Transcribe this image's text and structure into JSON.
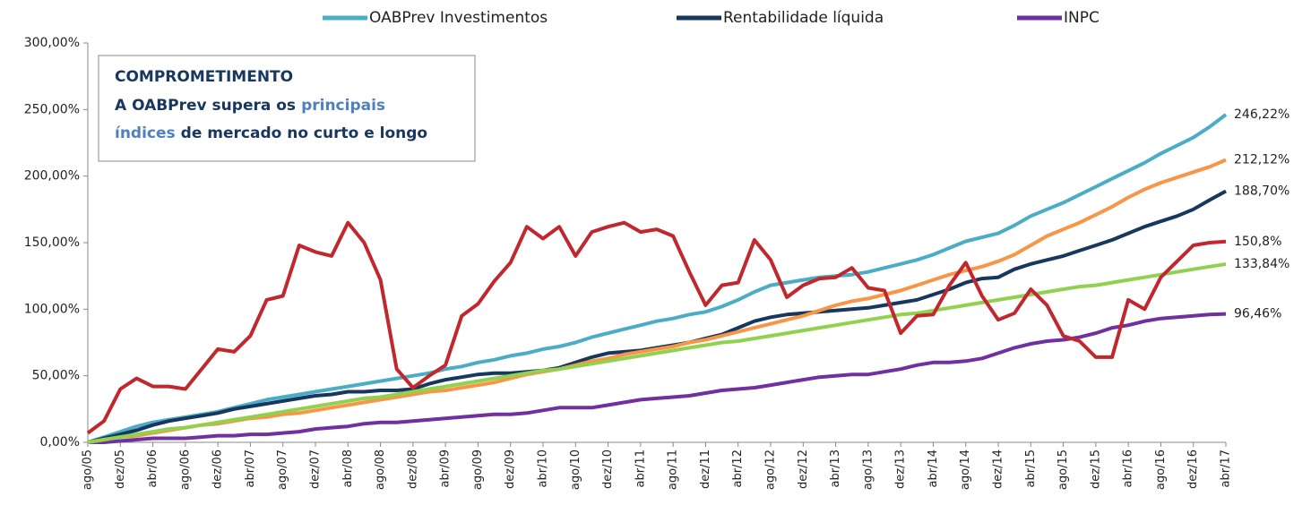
{
  "chart_data": {
    "type": "line",
    "categories": [
      "ago/05",
      null,
      "dez/05",
      null,
      "abr/06",
      null,
      "ago/06",
      null,
      "dez/06",
      null,
      "abr/07",
      null,
      "ago/07",
      null,
      "dez/07",
      null,
      "abr/08",
      null,
      "ago/08",
      null,
      "dez/08",
      null,
      "abr/09",
      null,
      "ago/09",
      null,
      "dez/09",
      null,
      "abr/10",
      null,
      "ago/10",
      null,
      "dez/10",
      null,
      "abr/11",
      null,
      "ago/11",
      null,
      "dez/11",
      null,
      "abr/12",
      null,
      "ago/12",
      null,
      "dez/12",
      null,
      "abr/13",
      null,
      "ago/13",
      null,
      "dez/13",
      null,
      "abr/14",
      null,
      "ago/14",
      null,
      "dez/14",
      null,
      "abr/15",
      null,
      "ago/15",
      null,
      "dez/15",
      null,
      "abr/16",
      null,
      "ago/16",
      null,
      "dez/16",
      null,
      "abr/17"
    ],
    "series": [
      {
        "name": "OABPrev Investimentos",
        "color": "#4bacc6",
        "end_label": "246,22%",
        "values": [
          0,
          4,
          8,
          12,
          15,
          17,
          19,
          21,
          23,
          26,
          29,
          32,
          34,
          36,
          38,
          40,
          42,
          44,
          46,
          48,
          50,
          52,
          55,
          57,
          60,
          62,
          65,
          67,
          70,
          72,
          75,
          79,
          82,
          85,
          88,
          91,
          93,
          96,
          98,
          102,
          107,
          113,
          118,
          120,
          122,
          124,
          125,
          126,
          128,
          131,
          134,
          137,
          141,
          146,
          151,
          154,
          157,
          163,
          170,
          175,
          180,
          186,
          192,
          198,
          204,
          210,
          217,
          223,
          229,
          237,
          246.22
        ]
      },
      {
        "name": "Rentabilidade líquida",
        "color": "#17375e",
        "end_label": "188,70%",
        "values": [
          0,
          3,
          6,
          9,
          13,
          16,
          18,
          20,
          22,
          25,
          27,
          29,
          31,
          33,
          35,
          36,
          38,
          38,
          39,
          39,
          40,
          44,
          47,
          49,
          51,
          52,
          52,
          53,
          54,
          56,
          60,
          64,
          67,
          68,
          69,
          71,
          73,
          75,
          78,
          81,
          86,
          91,
          94,
          96,
          97,
          98,
          99,
          100,
          101,
          103,
          105,
          107,
          111,
          115,
          120,
          123,
          124,
          130,
          134,
          137,
          140,
          144,
          148,
          152,
          157,
          162,
          166,
          170,
          175,
          182,
          188.7
        ]
      },
      {
        "name": "INPC",
        "color": "#7030a0",
        "end_label": "96,46%",
        "values": [
          0,
          0,
          1,
          2,
          3,
          3,
          3,
          4,
          5,
          5,
          6,
          6,
          7,
          8,
          10,
          11,
          12,
          14,
          15,
          15,
          16,
          17,
          18,
          19,
          20,
          21,
          21,
          22,
          24,
          26,
          26,
          26,
          28,
          30,
          32,
          33,
          34,
          35,
          37,
          39,
          40,
          41,
          43,
          45,
          47,
          49,
          50,
          51,
          51,
          53,
          55,
          58,
          60,
          60,
          61,
          63,
          67,
          71,
          74,
          76,
          77,
          79,
          82,
          86,
          88,
          91,
          93,
          94,
          95,
          96,
          96.46
        ]
      },
      {
        "color": "#f79646",
        "end_label": "212,12%",
        "values": [
          0,
          2,
          4,
          5,
          7,
          9,
          11,
          13,
          14,
          16,
          18,
          19,
          21,
          22,
          24,
          26,
          28,
          30,
          32,
          34,
          36,
          38,
          39,
          41,
          43,
          45,
          48,
          51,
          53,
          55,
          58,
          61,
          63,
          66,
          68,
          70,
          72,
          75,
          77,
          80,
          83,
          86,
          89,
          92,
          95,
          99,
          103,
          106,
          108,
          111,
          114,
          118,
          122,
          126,
          129,
          132,
          136,
          141,
          148,
          155,
          160,
          165,
          171,
          177,
          184,
          190,
          195,
          199,
          203,
          207,
          212.12
        ]
      },
      {
        "color": "#92d050",
        "end_label": "133,84%",
        "values": [
          0,
          2,
          4,
          6,
          8,
          10,
          11,
          13,
          15,
          17,
          19,
          21,
          23,
          25,
          27,
          29,
          31,
          33,
          34,
          36,
          38,
          40,
          42,
          44,
          46,
          48,
          50,
          52,
          54,
          55,
          57,
          59,
          61,
          63,
          65,
          67,
          69,
          71,
          73,
          75,
          76,
          78,
          80,
          82,
          84,
          86,
          88,
          90,
          92,
          94,
          96,
          97,
          99,
          101,
          103,
          105,
          107,
          109,
          111,
          113,
          115,
          117,
          118,
          120,
          122,
          124,
          126,
          128,
          130,
          132,
          133.84
        ]
      },
      {
        "color": "#c0282d",
        "end_label": "150,8%",
        "values": [
          7,
          16,
          40,
          48,
          42,
          42,
          40,
          55,
          70,
          68,
          80,
          107,
          110,
          148,
          143,
          140,
          165,
          150,
          122,
          55,
          41,
          50,
          58,
          95,
          104,
          121,
          135,
          162,
          153,
          162,
          140,
          158,
          162,
          165,
          158,
          160,
          155,
          128,
          103,
          118,
          120,
          152,
          137,
          109,
          118,
          123,
          124,
          131,
          116,
          114,
          82,
          95,
          96,
          118,
          135,
          110,
          92,
          97,
          115,
          103,
          80,
          76,
          64,
          64,
          107,
          100,
          124,
          136,
          148,
          150,
          150.8
        ]
      }
    ],
    "ylim": [
      0,
      300
    ],
    "yticks": [
      {
        "value": 0,
        "label": "0,00%"
      },
      {
        "value": 50,
        "label": "50,00%"
      },
      {
        "value": 100,
        "label": "100,00%"
      },
      {
        "value": 150,
        "label": "150,00%"
      },
      {
        "value": 200,
        "label": "200,00%"
      },
      {
        "value": 250,
        "label": "250,00%"
      },
      {
        "value": 300,
        "label": "300,00%"
      }
    ],
    "legend": "top",
    "annotation": {
      "title": "COMPROMETIMENTO",
      "lines": [
        [
          "A OABPrev supera os",
          "principais"
        ],
        [
          "índices",
          "de mercado no curto e longo"
        ]
      ]
    }
  }
}
